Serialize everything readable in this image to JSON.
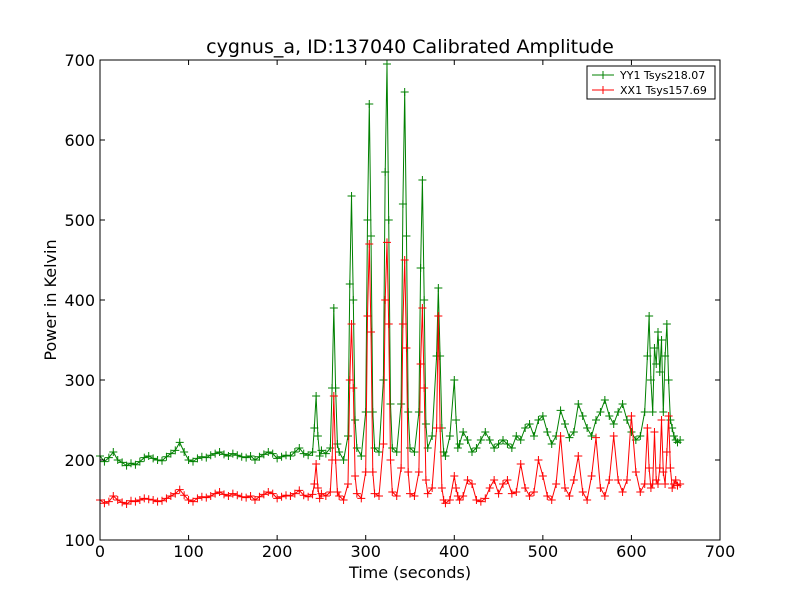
{
  "chart_data": {
    "type": "line",
    "title": "cygnus_a, ID:137040 Calibrated Amplitude",
    "xlabel": "Time (seconds)",
    "ylabel": "Power in Kelvin",
    "xlim": [
      0,
      700
    ],
    "ylim": [
      100,
      700
    ],
    "xticks": [
      0,
      100,
      200,
      300,
      400,
      500,
      600,
      700
    ],
    "yticks": [
      100,
      200,
      300,
      400,
      500,
      600,
      700
    ],
    "grid": false,
    "legend_position": "top-right",
    "marker": "+",
    "series": [
      {
        "name": "YY1 Tsys218.07",
        "color": "#008000",
        "x": [
          0,
          5,
          10,
          15,
          20,
          25,
          30,
          35,
          40,
          45,
          50,
          55,
          60,
          65,
          70,
          75,
          80,
          85,
          90,
          95,
          100,
          105,
          110,
          115,
          120,
          125,
          130,
          135,
          140,
          145,
          150,
          155,
          160,
          165,
          170,
          175,
          180,
          185,
          190,
          195,
          200,
          205,
          210,
          215,
          220,
          225,
          230,
          235,
          240,
          242,
          244,
          246,
          248,
          250,
          255,
          260,
          262,
          264,
          266,
          268,
          270,
          275,
          280,
          282,
          284,
          286,
          288,
          290,
          295,
          300,
          302,
          304,
          306,
          308,
          310,
          315,
          320,
          322,
          324,
          326,
          328,
          330,
          335,
          340,
          342,
          344,
          346,
          348,
          350,
          355,
          360,
          362,
          364,
          366,
          368,
          370,
          375,
          380,
          382,
          384,
          386,
          388,
          390,
          395,
          400,
          402,
          404,
          406,
          410,
          415,
          420,
          425,
          430,
          435,
          440,
          445,
          450,
          455,
          460,
          465,
          470,
          475,
          480,
          485,
          490,
          495,
          500,
          505,
          510,
          515,
          520,
          525,
          530,
          535,
          540,
          545,
          550,
          555,
          560,
          565,
          570,
          575,
          580,
          585,
          590,
          595,
          600,
          605,
          610,
          615,
          618,
          620,
          622,
          624,
          626,
          628,
          630,
          632,
          634,
          636,
          638,
          640,
          642,
          644,
          646,
          648,
          650,
          652,
          655
        ],
        "y": [
          205,
          198,
          203,
          210,
          200,
          197,
          193,
          196,
          194,
          198,
          203,
          205,
          202,
          200,
          199,
          204,
          208,
          212,
          222,
          210,
          200,
          198,
          202,
          204,
          203,
          206,
          208,
          210,
          207,
          205,
          208,
          206,
          204,
          203,
          205,
          200,
          204,
          207,
          210,
          208,
          202,
          204,
          206,
          205,
          210,
          215,
          208,
          206,
          210,
          240,
          280,
          230,
          205,
          212,
          208,
          215,
          290,
          390,
          290,
          220,
          210,
          200,
          230,
          420,
          530,
          400,
          250,
          215,
          205,
          260,
          500,
          645,
          480,
          260,
          215,
          210,
          300,
          560,
          695,
          500,
          270,
          215,
          210,
          270,
          520,
          660,
          480,
          260,
          215,
          210,
          260,
          440,
          550,
          400,
          245,
          215,
          230,
          330,
          415,
          330,
          240,
          210,
          205,
          230,
          300,
          250,
          215,
          220,
          235,
          225,
          210,
          215,
          225,
          235,
          225,
          215,
          220,
          225,
          220,
          215,
          230,
          225,
          240,
          245,
          230,
          250,
          255,
          235,
          220,
          230,
          262,
          245,
          228,
          235,
          270,
          255,
          240,
          230,
          250,
          260,
          275,
          255,
          245,
          260,
          270,
          250,
          235,
          225,
          230,
          260,
          330,
          380,
          300,
          260,
          340,
          320,
          360,
          310,
          350,
          260,
          330,
          370,
          300,
          250,
          240,
          230,
          225,
          222,
          225
        ]
      },
      {
        "name": "XX1 Tsys157.69",
        "color": "#ff0000",
        "x": [
          0,
          5,
          10,
          15,
          20,
          25,
          30,
          35,
          40,
          45,
          50,
          55,
          60,
          65,
          70,
          75,
          80,
          85,
          90,
          95,
          100,
          105,
          110,
          115,
          120,
          125,
          130,
          135,
          140,
          145,
          150,
          155,
          160,
          165,
          170,
          175,
          180,
          185,
          190,
          195,
          200,
          205,
          210,
          215,
          220,
          225,
          230,
          235,
          240,
          242,
          244,
          246,
          248,
          250,
          255,
          260,
          262,
          264,
          266,
          268,
          270,
          275,
          280,
          282,
          284,
          286,
          288,
          290,
          295,
          300,
          302,
          304,
          306,
          308,
          310,
          315,
          320,
          322,
          324,
          326,
          328,
          330,
          335,
          340,
          342,
          344,
          346,
          348,
          350,
          355,
          360,
          362,
          364,
          366,
          368,
          370,
          375,
          380,
          382,
          384,
          386,
          388,
          390,
          395,
          400,
          402,
          404,
          406,
          410,
          415,
          420,
          425,
          430,
          435,
          440,
          445,
          450,
          455,
          460,
          465,
          470,
          475,
          480,
          485,
          490,
          495,
          500,
          505,
          510,
          515,
          520,
          525,
          530,
          535,
          540,
          545,
          550,
          555,
          560,
          565,
          570,
          575,
          580,
          585,
          590,
          595,
          600,
          605,
          610,
          615,
          618,
          620,
          622,
          624,
          626,
          628,
          630,
          632,
          634,
          636,
          638,
          640,
          642,
          644,
          646,
          648,
          650,
          652,
          655
        ],
        "y": [
          150,
          146,
          148,
          155,
          150,
          147,
          145,
          149,
          148,
          150,
          152,
          151,
          150,
          148,
          149,
          152,
          155,
          158,
          163,
          156,
          150,
          148,
          152,
          154,
          153,
          155,
          158,
          160,
          157,
          155,
          158,
          156,
          154,
          153,
          155,
          150,
          154,
          157,
          160,
          158,
          152,
          154,
          156,
          155,
          158,
          162,
          156,
          154,
          157,
          170,
          195,
          165,
          152,
          158,
          155,
          160,
          200,
          280,
          200,
          160,
          155,
          150,
          170,
          300,
          370,
          290,
          180,
          158,
          152,
          185,
          380,
          470,
          360,
          185,
          158,
          155,
          220,
          400,
          472,
          370,
          200,
          160,
          155,
          190,
          370,
          450,
          340,
          185,
          158,
          155,
          185,
          320,
          390,
          290,
          175,
          158,
          165,
          240,
          380,
          240,
          165,
          150,
          146,
          150,
          180,
          165,
          155,
          150,
          155,
          175,
          170,
          150,
          148,
          152,
          165,
          175,
          158,
          170,
          175,
          158,
          160,
          195,
          165,
          155,
          160,
          200,
          180,
          155,
          150,
          170,
          230,
          165,
          155,
          175,
          205,
          160,
          150,
          180,
          228,
          165,
          155,
          175,
          230,
          175,
          160,
          175,
          255,
          185,
          160,
          170,
          240,
          190,
          165,
          170,
          235,
          175,
          170,
          190,
          250,
          185,
          170,
          210,
          255,
          190,
          165,
          170,
          175,
          168,
          170
        ]
      }
    ]
  }
}
